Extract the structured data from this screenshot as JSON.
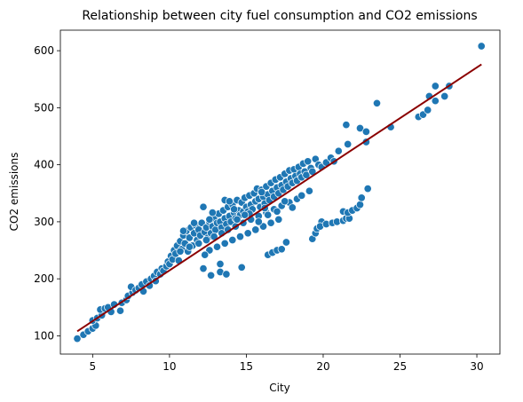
{
  "chart_data": {
    "type": "scatter",
    "title": "Relationship between city fuel consumption and CO2 emissions",
    "xlabel": "City",
    "ylabel": "CO2 emissions",
    "xlim": [
      2.9,
      31.5
    ],
    "ylim": [
      68,
      636
    ],
    "xticks": [
      5,
      10,
      15,
      20,
      25,
      30
    ],
    "yticks": [
      100,
      200,
      300,
      400,
      500,
      600
    ],
    "grid": false,
    "legend": "none",
    "colors": {
      "points": "#1f77b4",
      "point_edge": "#ffffff",
      "fit_line": "#8b0000"
    },
    "series": [
      {
        "values": [
          [
            4.0,
            95
          ],
          [
            4.4,
            102
          ],
          [
            4.7,
            108
          ],
          [
            5.0,
            113
          ],
          [
            5.2,
            118
          ],
          [
            5.0,
            127
          ],
          [
            5.3,
            131
          ],
          [
            5.6,
            136
          ],
          [
            5.5,
            146
          ],
          [
            5.8,
            148
          ],
          [
            6.2,
            142
          ],
          [
            6.0,
            150
          ],
          [
            6.4,
            155
          ],
          [
            6.8,
            144
          ],
          [
            6.9,
            158
          ],
          [
            7.2,
            163
          ],
          [
            7.3,
            170
          ],
          [
            7.6,
            176
          ],
          [
            7.5,
            186
          ],
          [
            7.8,
            180
          ],
          [
            8.0,
            184
          ],
          [
            8.2,
            190
          ],
          [
            8.3,
            178
          ],
          [
            8.5,
            195
          ],
          [
            8.7,
            188
          ],
          [
            8.8,
            200
          ],
          [
            9.0,
            205
          ],
          [
            9.1,
            196
          ],
          [
            9.2,
            212
          ],
          [
            9.4,
            208
          ],
          [
            9.5,
            218
          ],
          [
            9.6,
            214
          ],
          [
            9.8,
            222
          ],
          [
            9.9,
            230
          ],
          [
            10.0,
            226
          ],
          [
            10.1,
            240
          ],
          [
            10.2,
            234
          ],
          [
            10.3,
            250
          ],
          [
            10.4,
            244
          ],
          [
            10.5,
            258
          ],
          [
            10.6,
            232
          ],
          [
            10.7,
            266
          ],
          [
            10.8,
            252
          ],
          [
            10.9,
            276
          ],
          [
            11.0,
            262
          ],
          [
            11.1,
            284
          ],
          [
            11.2,
            248
          ],
          [
            11.3,
            272
          ],
          [
            11.4,
            290
          ],
          [
            11.5,
            258
          ],
          [
            11.6,
            280
          ],
          [
            11.7,
            294
          ],
          [
            11.8,
            268
          ],
          [
            11.9,
            286
          ],
          [
            12.0,
            276
          ],
          [
            12.1,
            298
          ],
          [
            12.2,
            326
          ],
          [
            12.3,
            282
          ],
          [
            12.4,
            290
          ],
          [
            12.5,
            272
          ],
          [
            12.6,
            300
          ],
          [
            12.7,
            280
          ],
          [
            12.8,
            292
          ],
          [
            12.9,
            305
          ],
          [
            13.0,
            286
          ],
          [
            13.1,
            298
          ],
          [
            13.2,
            314
          ],
          [
            13.3,
            300
          ],
          [
            13.4,
            290
          ],
          [
            13.5,
            320
          ],
          [
            13.6,
            306
          ],
          [
            13.7,
            296
          ],
          [
            13.8,
            326
          ],
          [
            13.9,
            310
          ],
          [
            14.0,
            300
          ],
          [
            14.1,
            330
          ],
          [
            14.2,
            316
          ],
          [
            14.3,
            306
          ],
          [
            14.4,
            338
          ],
          [
            14.5,
            320
          ],
          [
            14.6,
            312
          ],
          [
            14.7,
            334
          ],
          [
            14.8,
            318
          ],
          [
            14.9,
            342
          ],
          [
            15.0,
            326
          ],
          [
            15.1,
            318
          ],
          [
            15.2,
            346
          ],
          [
            15.3,
            330
          ],
          [
            15.4,
            322
          ],
          [
            15.5,
            350
          ],
          [
            15.6,
            336
          ],
          [
            15.7,
            358
          ],
          [
            15.8,
            340
          ],
          [
            15.9,
            326
          ],
          [
            16.0,
            356
          ],
          [
            16.1,
            344
          ],
          [
            16.2,
            332
          ],
          [
            16.3,
            362
          ],
          [
            16.4,
            348
          ],
          [
            16.5,
            338
          ],
          [
            16.6,
            368
          ],
          [
            16.7,
            354
          ],
          [
            16.8,
            344
          ],
          [
            16.9,
            374
          ],
          [
            17.0,
            360
          ],
          [
            17.1,
            350
          ],
          [
            17.2,
            378
          ],
          [
            17.3,
            364
          ],
          [
            17.4,
            356
          ],
          [
            17.5,
            384
          ],
          [
            17.6,
            370
          ],
          [
            17.7,
            362
          ],
          [
            17.8,
            390
          ],
          [
            17.9,
            376
          ],
          [
            18.0,
            368
          ],
          [
            18.1,
            392
          ],
          [
            18.2,
            380
          ],
          [
            18.3,
            372
          ],
          [
            18.4,
            396
          ],
          [
            18.5,
            384
          ],
          [
            18.6,
            378
          ],
          [
            18.7,
            402
          ],
          [
            18.8,
            388
          ],
          [
            18.9,
            382
          ],
          [
            19.0,
            406
          ],
          [
            19.2,
            394
          ],
          [
            19.3,
            388
          ],
          [
            19.5,
            410
          ],
          [
            19.7,
            400
          ],
          [
            19.9,
            396
          ],
          [
            20.2,
            404
          ],
          [
            20.5,
            412
          ],
          [
            20.7,
            406
          ],
          [
            21.0,
            424
          ],
          [
            10.7,
            248
          ],
          [
            11.3,
            256
          ],
          [
            11.9,
            262
          ],
          [
            12.4,
            268
          ],
          [
            12.9,
            274
          ],
          [
            13.4,
            280
          ],
          [
            13.8,
            286
          ],
          [
            14.3,
            292
          ],
          [
            14.8,
            298
          ],
          [
            15.3,
            304
          ],
          [
            15.8,
            310
          ],
          [
            16.3,
            316
          ],
          [
            16.8,
            322
          ],
          [
            17.3,
            328
          ],
          [
            17.8,
            334
          ],
          [
            18.3,
            340
          ],
          [
            12.6,
            250
          ],
          [
            13.1,
            256
          ],
          [
            13.6,
            262
          ],
          [
            14.1,
            268
          ],
          [
            14.6,
            274
          ],
          [
            15.1,
            280
          ],
          [
            15.6,
            286
          ],
          [
            16.1,
            292
          ],
          [
            16.6,
            298
          ],
          [
            17.1,
            304
          ],
          [
            14.2,
            322
          ],
          [
            15.2,
            314
          ],
          [
            16.4,
            312
          ],
          [
            17.0,
            318
          ],
          [
            18.0,
            325
          ],
          [
            13.6,
            338
          ],
          [
            12.8,
            316
          ],
          [
            14.4,
            304
          ],
          [
            15.8,
            300
          ],
          [
            16.2,
            324
          ],
          [
            17.5,
            336
          ],
          [
            18.6,
            346
          ],
          [
            19.1,
            354
          ],
          [
            13.9,
            336
          ],
          [
            14.9,
            312
          ],
          [
            16.0,
            352
          ],
          [
            12.6,
            304
          ],
          [
            13.3,
            226
          ],
          [
            12.2,
            218
          ],
          [
            10.9,
            284
          ],
          [
            11.6,
            298
          ],
          [
            12.3,
            242
          ],
          [
            13.3,
            212
          ],
          [
            13.7,
            208
          ],
          [
            14.7,
            220
          ],
          [
            12.7,
            206
          ],
          [
            16.4,
            242
          ],
          [
            16.7,
            246
          ],
          [
            17.0,
            250
          ],
          [
            17.3,
            252
          ],
          [
            17.6,
            264
          ],
          [
            19.3,
            270
          ],
          [
            19.5,
            280
          ],
          [
            19.6,
            288
          ],
          [
            19.9,
            300
          ],
          [
            19.8,
            292
          ],
          [
            20.2,
            296
          ],
          [
            20.6,
            298
          ],
          [
            20.9,
            300
          ],
          [
            21.3,
            302
          ],
          [
            21.5,
            306
          ],
          [
            21.7,
            306
          ],
          [
            21.3,
            318
          ],
          [
            21.6,
            316
          ],
          [
            21.9,
            320
          ],
          [
            22.2,
            324
          ],
          [
            22.4,
            330
          ],
          [
            22.5,
            342
          ],
          [
            22.9,
            358
          ],
          [
            21.6,
            436
          ],
          [
            21.5,
            470
          ],
          [
            22.4,
            464
          ],
          [
            22.8,
            458
          ],
          [
            23.5,
            508
          ],
          [
            22.8,
            440
          ],
          [
            24.4,
            466
          ],
          [
            26.2,
            484
          ],
          [
            26.5,
            488
          ],
          [
            26.8,
            496
          ],
          [
            26.9,
            520
          ],
          [
            27.3,
            538
          ],
          [
            27.3,
            512
          ],
          [
            27.9,
            520
          ],
          [
            28.2,
            538
          ],
          [
            30.3,
            608
          ]
        ]
      }
    ],
    "fit_line": {
      "x": [
        4.0,
        30.3
      ],
      "y": [
        108,
        576
      ]
    }
  }
}
